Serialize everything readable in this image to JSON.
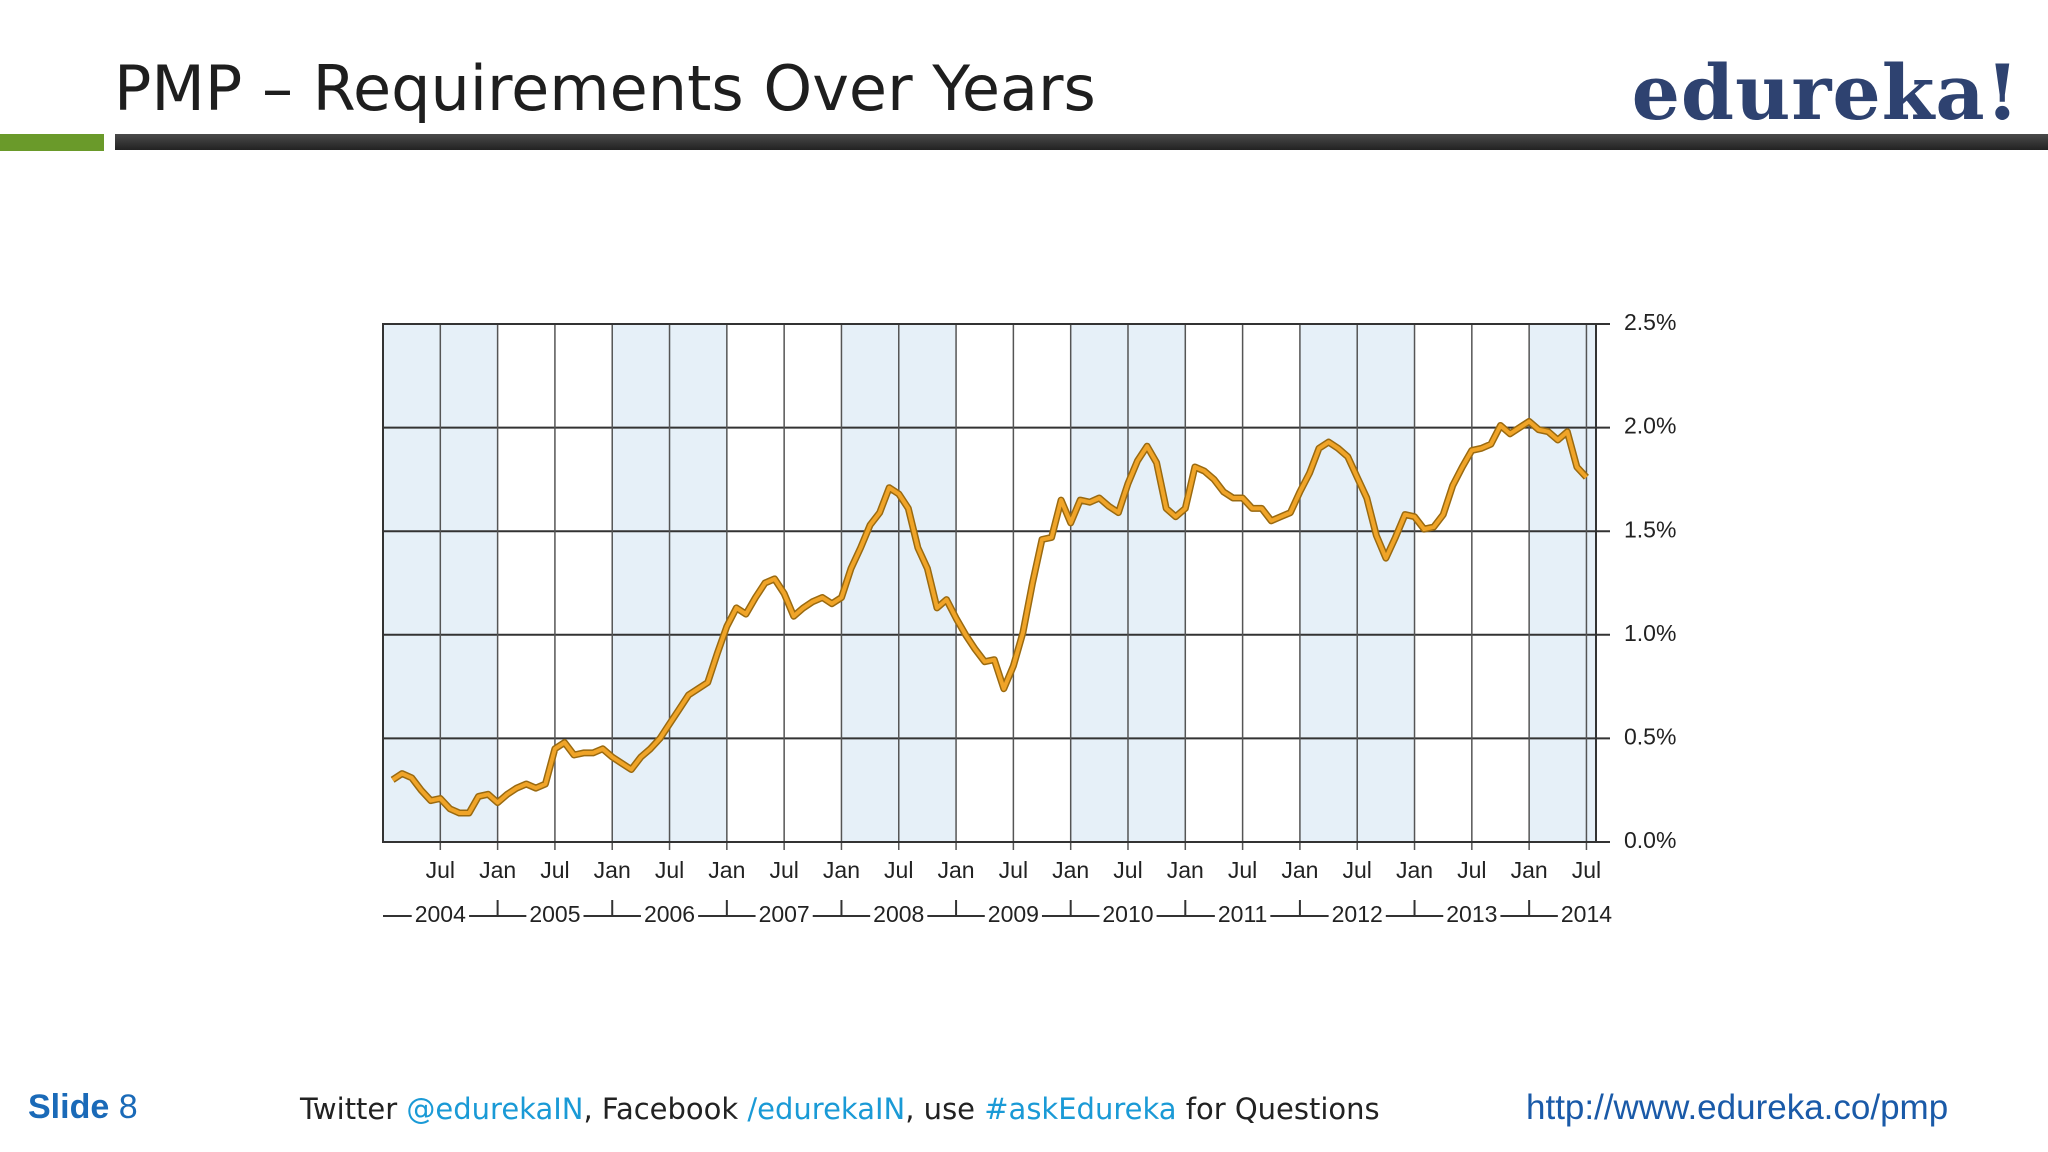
{
  "slide": {
    "title": "PMP – Requirements Over Years",
    "logo": "edureka!",
    "footer": {
      "slide_label": "Slide",
      "slide_number": "8",
      "social": [
        "Twitter ",
        "@edurekaIN",
        ", Facebook ",
        "/edurekaIN",
        ", use ",
        "#askEdureka",
        " for Questions"
      ],
      "url": "http://www.edureka.co/pmp"
    }
  },
  "chart_data": {
    "type": "line",
    "color": "#f0a428",
    "x": [
      "2004-02",
      "2004-03",
      "2004-04",
      "2004-05",
      "2004-06",
      "2004-07",
      "2004-08",
      "2004-09",
      "2004-10",
      "2004-11",
      "2004-12",
      "2005-01",
      "2005-02",
      "2005-03",
      "2005-04",
      "2005-05",
      "2005-06",
      "2005-07",
      "2005-08",
      "2005-09",
      "2005-10",
      "2005-11",
      "2005-12",
      "2006-01",
      "2006-02",
      "2006-03",
      "2006-04",
      "2006-05",
      "2006-06",
      "2006-07",
      "2006-08",
      "2006-09",
      "2006-10",
      "2006-11",
      "2006-12",
      "2007-01",
      "2007-02",
      "2007-03",
      "2007-04",
      "2007-05",
      "2007-06",
      "2007-07",
      "2007-08",
      "2007-09",
      "2007-10",
      "2007-11",
      "2007-12",
      "2008-01",
      "2008-02",
      "2008-03",
      "2008-04",
      "2008-05",
      "2008-06",
      "2008-07",
      "2008-08",
      "2008-09",
      "2008-10",
      "2008-11",
      "2008-12",
      "2009-01",
      "2009-02",
      "2009-03",
      "2009-04",
      "2009-05",
      "2009-06",
      "2009-07",
      "2009-08",
      "2009-09",
      "2009-10",
      "2009-11",
      "2009-12",
      "2010-01",
      "2010-02",
      "2010-03",
      "2010-04",
      "2010-05",
      "2010-06",
      "2010-07",
      "2010-08",
      "2010-09",
      "2010-10",
      "2010-11",
      "2010-12",
      "2011-01",
      "2011-02",
      "2011-03",
      "2011-04",
      "2011-05",
      "2011-06",
      "2011-07",
      "2011-08",
      "2011-09",
      "2011-10",
      "2011-11",
      "2011-12",
      "2012-01",
      "2012-02",
      "2012-03",
      "2012-04",
      "2012-05",
      "2012-06",
      "2012-07",
      "2012-08",
      "2012-09",
      "2012-10",
      "2012-11",
      "2012-12",
      "2013-01",
      "2013-02",
      "2013-03",
      "2013-04",
      "2013-05",
      "2013-06",
      "2013-07",
      "2013-08",
      "2013-09",
      "2013-10",
      "2013-11",
      "2013-12",
      "2014-01",
      "2014-02",
      "2014-03",
      "2014-04",
      "2014-05",
      "2014-06",
      "2014-07"
    ],
    "values": [
      0.3,
      0.33,
      0.31,
      0.25,
      0.2,
      0.21,
      0.16,
      0.14,
      0.14,
      0.22,
      0.23,
      0.19,
      0.23,
      0.26,
      0.28,
      0.26,
      0.28,
      0.45,
      0.48,
      0.42,
      0.43,
      0.43,
      0.45,
      0.41,
      0.38,
      0.35,
      0.41,
      0.45,
      0.5,
      0.57,
      0.64,
      0.71,
      0.74,
      0.77,
      0.91,
      1.04,
      1.13,
      1.1,
      1.18,
      1.25,
      1.27,
      1.2,
      1.09,
      1.13,
      1.16,
      1.18,
      1.15,
      1.18,
      1.32,
      1.42,
      1.53,
      1.59,
      1.71,
      1.68,
      1.61,
      1.42,
      1.32,
      1.13,
      1.17,
      1.08,
      1.0,
      0.93,
      0.87,
      0.88,
      0.74,
      0.85,
      1.01,
      1.25,
      1.46,
      1.47,
      1.65,
      1.54,
      1.65,
      1.64,
      1.66,
      1.62,
      1.59,
      1.73,
      1.84,
      1.91,
      1.83,
      1.61,
      1.57,
      1.61,
      1.81,
      1.79,
      1.75,
      1.69,
      1.66,
      1.66,
      1.61,
      1.61,
      1.55,
      1.57,
      1.59,
      1.69,
      1.78,
      1.9,
      1.93,
      1.9,
      1.86,
      1.76,
      1.66,
      1.48,
      1.37,
      1.47,
      1.58,
      1.57,
      1.51,
      1.52,
      1.58,
      1.72,
      1.81,
      1.89,
      1.9,
      1.92,
      2.01,
      1.97,
      2.0,
      2.03,
      1.99,
      1.98,
      1.94,
      1.98,
      1.81,
      1.76
    ],
    "xlim": [
      "2004-01",
      "2014-08"
    ],
    "xticks": [
      {
        "value": "2004-07",
        "label": "Jul"
      },
      {
        "value": "2005-01",
        "label": "Jan"
      },
      {
        "value": "2005-07",
        "label": "Jul"
      },
      {
        "value": "2006-01",
        "label": "Jan"
      },
      {
        "value": "2006-07",
        "label": "Jul"
      },
      {
        "value": "2007-01",
        "label": "Jan"
      },
      {
        "value": "2007-07",
        "label": "Jul"
      },
      {
        "value": "2008-01",
        "label": "Jan"
      },
      {
        "value": "2008-07",
        "label": "Jul"
      },
      {
        "value": "2009-01",
        "label": "Jan"
      },
      {
        "value": "2009-07",
        "label": "Jul"
      },
      {
        "value": "2010-01",
        "label": "Jan"
      },
      {
        "value": "2010-07",
        "label": "Jul"
      },
      {
        "value": "2011-01",
        "label": "Jan"
      },
      {
        "value": "2011-07",
        "label": "Jul"
      },
      {
        "value": "2012-01",
        "label": "Jan"
      },
      {
        "value": "2012-07",
        "label": "Jul"
      },
      {
        "value": "2013-01",
        "label": "Jan"
      },
      {
        "value": "2013-07",
        "label": "Jul"
      },
      {
        "value": "2014-01",
        "label": "Jan"
      },
      {
        "value": "2014-07",
        "label": "Jul"
      }
    ],
    "years": [
      "2004",
      "2005",
      "2006",
      "2007",
      "2008",
      "2009",
      "2010",
      "2011",
      "2012",
      "2013",
      "2014"
    ],
    "ylim": [
      0,
      2.5
    ],
    "yticks": [
      {
        "value": 0,
        "label": "0.0%"
      },
      {
        "value": 0.5,
        "label": "0.5%"
      },
      {
        "value": 1,
        "label": "1.0%"
      },
      {
        "value": 1.5,
        "label": "1.5%"
      },
      {
        "value": 2,
        "label": "2.0%"
      },
      {
        "value": 2.5,
        "label": "2.5%"
      }
    ],
    "grid": true
  }
}
